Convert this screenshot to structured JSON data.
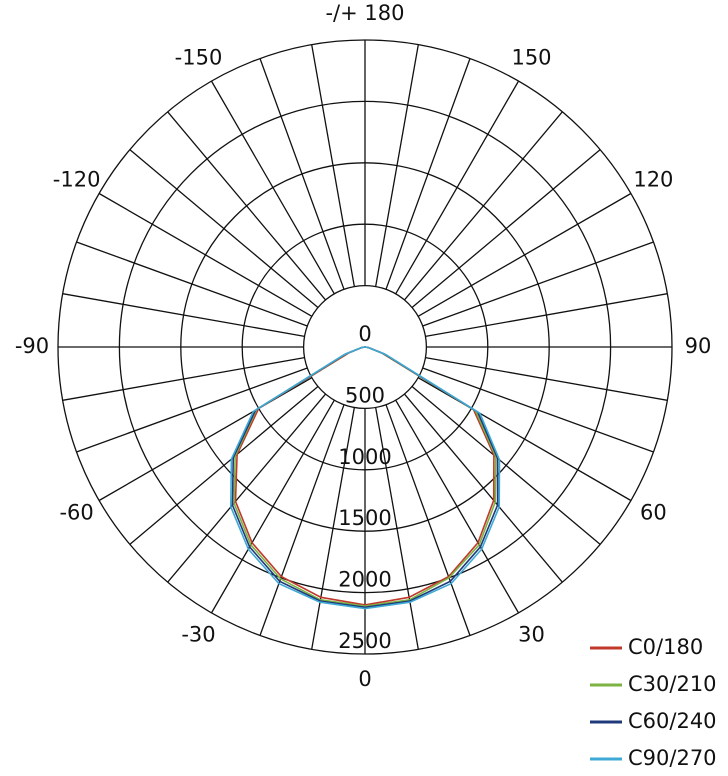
{
  "chart_data": {
    "type": "polar",
    "x": [
      -90,
      -80,
      -70,
      -60,
      -50,
      -40,
      -30,
      -20,
      -10,
      0,
      10,
      20,
      30,
      40,
      50,
      60,
      70,
      80,
      90
    ],
    "series": [
      {
        "name": "C0/180",
        "color": "#c0392b",
        "values": [
          0,
          30,
          140,
          1000,
          1360,
          1640,
          1840,
          1990,
          2070,
          2100,
          2070,
          1990,
          1840,
          1630,
          1370,
          1020,
          150,
          30,
          0
        ]
      },
      {
        "name": "C30/210",
        "color": "#7cb342",
        "values": [
          0,
          30,
          160,
          1020,
          1380,
          1660,
          1860,
          2010,
          2090,
          2110,
          2090,
          2000,
          1860,
          1650,
          1390,
          1040,
          160,
          30,
          0
        ]
      },
      {
        "name": "C60/240",
        "color": "#1f3a7a",
        "values": [
          0,
          30,
          170,
          1030,
          1400,
          1680,
          1880,
          2030,
          2100,
          2120,
          2100,
          2030,
          1880,
          1680,
          1410,
          1060,
          170,
          30,
          0
        ]
      },
      {
        "name": "C90/270",
        "color": "#3fa9d6",
        "values": [
          0,
          30,
          180,
          1050,
          1420,
          1700,
          1900,
          2050,
          2110,
          2130,
          2110,
          2050,
          1900,
          1700,
          1430,
          1080,
          180,
          30,
          0
        ]
      }
    ],
    "rlim": [
      0,
      2500
    ],
    "rticks": [
      0,
      500,
      1000,
      1500,
      2000,
      2500
    ],
    "thetaticks": [
      0,
      30,
      60,
      90,
      120,
      150,
      {
        "value": 180,
        "label": "-/+ 180"
      },
      -150,
      -120,
      -90,
      -60,
      -30
    ]
  }
}
